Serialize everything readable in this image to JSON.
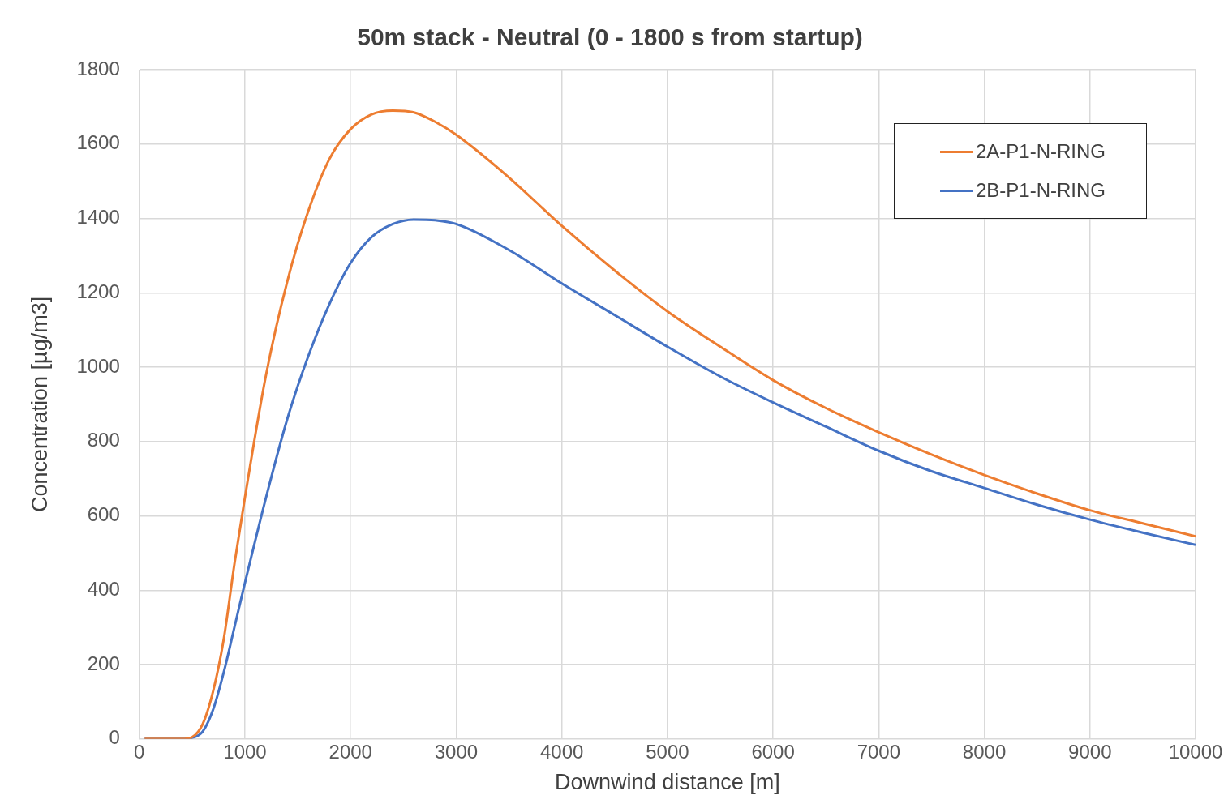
{
  "chart_data": {
    "type": "line",
    "title": "50m stack - Neutral (0 - 1800 s from startup)",
    "xlabel": "Downwind distance [m]",
    "ylabel": "Concentration [µg/m3]",
    "xlim": [
      0,
      10000
    ],
    "xticks": [
      0,
      1000,
      2000,
      3000,
      4000,
      5000,
      6000,
      7000,
      8000,
      9000,
      10000
    ],
    "ylim": [
      0,
      1800
    ],
    "yticks": [
      0,
      200,
      400,
      600,
      800,
      1000,
      1200,
      1400,
      1600,
      1800
    ],
    "grid": true,
    "legend": "top right",
    "marker": "none",
    "line_style": "solid",
    "x": [
      50,
      400,
      500,
      600,
      700,
      800,
      900,
      1000,
      1200,
      1400,
      1600,
      1800,
      2000,
      2200,
      2400,
      2600,
      2800,
      3000,
      3500,
      4000,
      4500,
      5000,
      5500,
      6000,
      6500,
      7000,
      7500,
      8000,
      8500,
      9000,
      9500,
      10000
    ],
    "series": [
      {
        "name": "2A-P1-N-RING",
        "color": "#ed7d31",
        "values": [
          0,
          0,
          5,
          40,
          130,
          270,
          470,
          650,
          980,
          1230,
          1420,
          1560,
          1640,
          1680,
          1690,
          1685,
          1660,
          1625,
          1510,
          1380,
          1260,
          1150,
          1055,
          965,
          890,
          825,
          765,
          710,
          660,
          615,
          580,
          545
        ]
      },
      {
        "name": "2B-P1-N-RING",
        "color": "#4472c4",
        "values": [
          0,
          0,
          3,
          20,
          80,
          180,
          300,
          420,
          650,
          860,
          1030,
          1170,
          1280,
          1350,
          1385,
          1397,
          1395,
          1385,
          1315,
          1225,
          1140,
          1055,
          975,
          905,
          840,
          775,
          720,
          675,
          630,
          590,
          555,
          522
        ]
      }
    ]
  }
}
